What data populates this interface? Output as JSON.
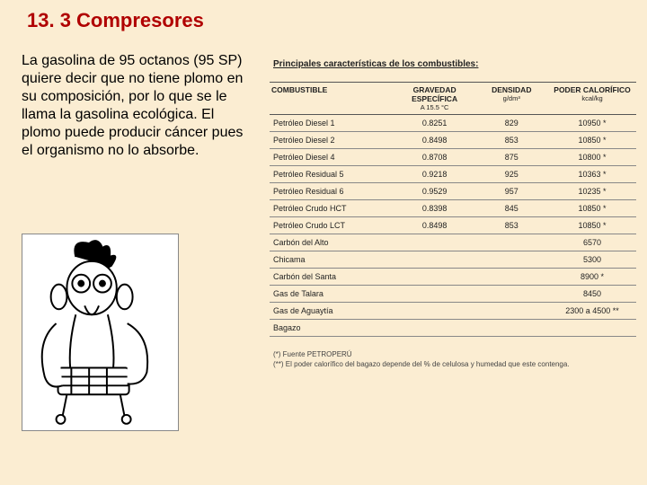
{
  "heading": "13. 3 Compresores",
  "paragraph": "La gasolina de 95 octanos (95 SP) quiere decir que no tiene plomo en su composición, por lo que se le llama la gasolina ecológica. El plomo puede producir cáncer pues el organismo no lo absorbe.",
  "table": {
    "title": "Principales características de los combustibles:",
    "columns": [
      {
        "label": "COMBUSTIBLE",
        "sub": ""
      },
      {
        "label": "GRAVEDAD ESPECÍFICA",
        "sub": "A 15.5 °C"
      },
      {
        "label": "DENSIDAD",
        "sub": "g/dm³"
      },
      {
        "label": "PODER CALORÍFICO",
        "sub": "kcal/kg"
      }
    ],
    "rows": [
      {
        "name": "Petróleo Diesel 1",
        "grav": "0.8251",
        "dens": "829",
        "cal": "10950 *"
      },
      {
        "name": "Petróleo Diesel 2",
        "grav": "0.8498",
        "dens": "853",
        "cal": "10850 *"
      },
      {
        "name": "Petróleo Diesel 4",
        "grav": "0.8708",
        "dens": "875",
        "cal": "10800 *"
      },
      {
        "name": "Petróleo Residual 5",
        "grav": "0.9218",
        "dens": "925",
        "cal": "10363 *"
      },
      {
        "name": "Petróleo Residual 6",
        "grav": "0.9529",
        "dens": "957",
        "cal": "10235 *"
      },
      {
        "name": "Petróleo Crudo HCT",
        "grav": "0.8398",
        "dens": "845",
        "cal": "10850 *"
      },
      {
        "name": "Petróleo Crudo LCT",
        "grav": "0.8498",
        "dens": "853",
        "cal": "10850 *"
      },
      {
        "name": "Carbón del Alto",
        "grav": "",
        "dens": "",
        "cal": "6570"
      },
      {
        "name": "Chicama",
        "grav": "",
        "dens": "",
        "cal": "5300"
      },
      {
        "name": "Carbón del Santa",
        "grav": "",
        "dens": "",
        "cal": "8900 *"
      },
      {
        "name": "Gas de Talara",
        "grav": "",
        "dens": "",
        "cal": "8450"
      },
      {
        "name": "Gas de Aguaytía",
        "grav": "",
        "dens": "",
        "cal": "2300 a 4500 **"
      },
      {
        "name": "Bagazo",
        "grav": "",
        "dens": "",
        "cal": ""
      }
    ],
    "footnotes": [
      "(*) Fuente PETROPERÚ",
      "(**) El poder calorífico del bagazo depende del % de celulosa y humedad que este contenga."
    ]
  },
  "colors": {
    "background": "#fbedd2",
    "heading": "#b00000",
    "text": "#000000",
    "tableText": "#222222",
    "rule": "#555555"
  }
}
